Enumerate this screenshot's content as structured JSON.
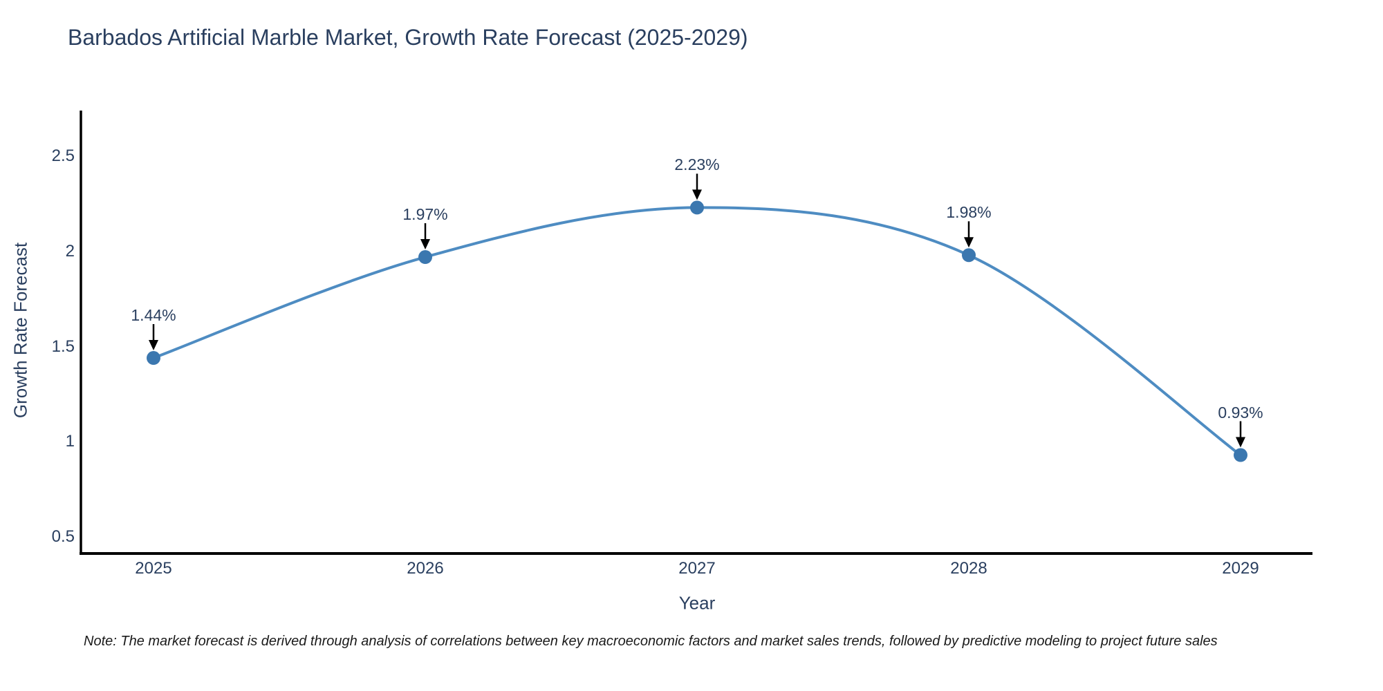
{
  "header": {
    "title": "Barbados Artificial Marble Market, Growth Rate Forecast (2025-2029)"
  },
  "chart_data": {
    "type": "line",
    "title": "Barbados Artificial Marble Market, Growth Rate Forecast (2025-2029)",
    "categories": [
      "2025",
      "2026",
      "2027",
      "2028",
      "2029"
    ],
    "values": [
      1.44,
      1.97,
      2.23,
      1.98,
      0.93
    ],
    "point_labels": [
      "1.44%",
      "1.97%",
      "2.23%",
      "1.98%",
      "0.93%"
    ],
    "xlabel": "Year",
    "ylabel": "Growth Rate Forecast",
    "yticks": [
      0.5,
      1,
      1.5,
      2,
      2.5
    ],
    "ylim": [
      0.41,
      2.74
    ],
    "line_shape": "spline",
    "grid": false,
    "legend_position": "none",
    "colors": {
      "line": "#4e8cc2",
      "marker": "#3b77af",
      "axis": "#000000",
      "text": "#2a3f5f",
      "annotation_arrow": "#000000"
    }
  },
  "note": {
    "text": "Note: The market forecast is derived through analysis of correlations between key macroeconomic factors and market sales trends, followed by predictive modeling to project future sales"
  }
}
